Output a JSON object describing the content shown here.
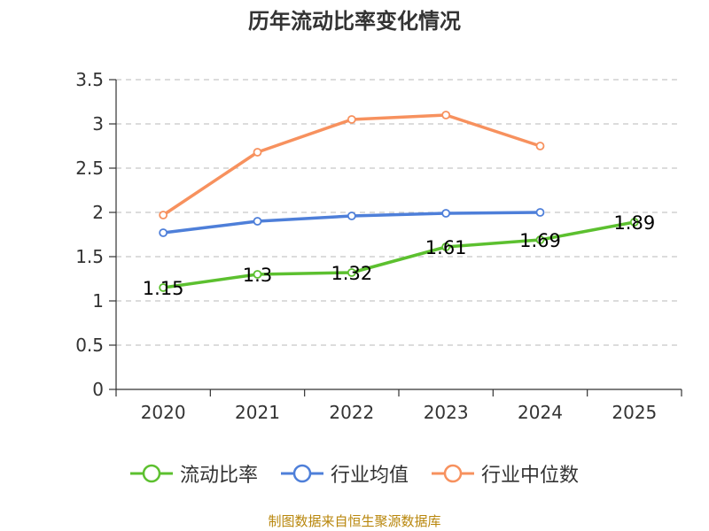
{
  "colors": {
    "current_ratio": "#5cc02f",
    "industry_avg": "#4e7fd9",
    "industry_median": "#f7915e",
    "grid": "#c8c8c8",
    "axis": "#333333",
    "source_text": "#b8860b"
  },
  "footer": {
    "source": "制图数据来自恒生聚源数据库"
  },
  "chart_data": {
    "type": "line",
    "title": "历年流动比率变化情况",
    "categories": [
      "2020",
      "2021",
      "2022",
      "2023",
      "2024",
      "2025"
    ],
    "ylim": [
      0,
      3.5
    ],
    "yticks": [
      "0",
      "0.5",
      "1",
      "1.5",
      "2",
      "2.5",
      "3",
      "3.5"
    ],
    "grid": true,
    "legend_position": "bottom-center",
    "series": [
      {
        "key": "current_ratio",
        "name": "流动比率",
        "values": [
          1.15,
          1.3,
          1.32,
          1.61,
          1.69,
          1.89
        ],
        "labels": [
          "1.15",
          "1.3",
          "1.32",
          "1.61",
          "1.69",
          "1.89"
        ]
      },
      {
        "key": "industry_avg",
        "name": "行业均值",
        "values": [
          1.77,
          1.9,
          1.96,
          1.99,
          2.0,
          null
        ]
      },
      {
        "key": "industry_median",
        "name": "行业中位数",
        "values": [
          1.97,
          2.68,
          3.05,
          3.1,
          2.75,
          null
        ]
      }
    ]
  }
}
